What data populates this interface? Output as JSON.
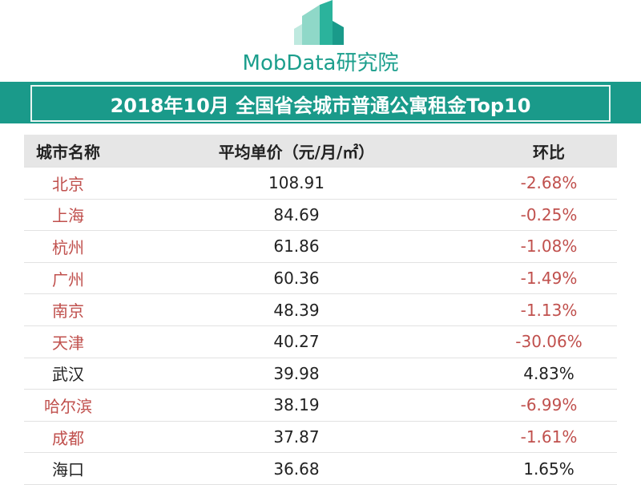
{
  "header": {
    "logo": "MobData研究院",
    "title": "2018年10月 全国省会城市普通公寓租金Top10"
  },
  "table": {
    "columns": [
      "城市名称",
      "平均单价（元/月/㎡）",
      "环比"
    ],
    "rows": [
      [
        "北京",
        "108.91",
        "-2.68%"
      ],
      [
        "上海",
        "84.69",
        "-0.25%"
      ],
      [
        "杭州",
        "61.86",
        "-1.08%"
      ],
      [
        "广州",
        "60.36",
        "-1.49%"
      ],
      [
        "南京",
        "48.39",
        "-1.13%"
      ],
      [
        "天津",
        "40.27",
        "-30.06%"
      ],
      [
        "武汉",
        "39.98",
        "4.83%"
      ],
      [
        "哈尔滨",
        "38.19",
        "-6.99%"
      ],
      [
        "成都",
        "37.87",
        "-1.61%"
      ],
      [
        "海口",
        "36.68",
        "1.65%"
      ]
    ]
  }
}
